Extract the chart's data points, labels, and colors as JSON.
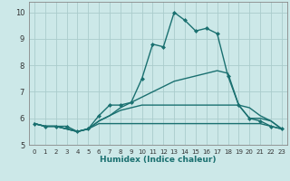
{
  "xlabel": "Humidex (Indice chaleur)",
  "xlim": [
    -0.5,
    23.5
  ],
  "ylim": [
    5.0,
    10.4
  ],
  "yticks": [
    5,
    6,
    7,
    8,
    9,
    10
  ],
  "xticks": [
    0,
    1,
    2,
    3,
    4,
    5,
    6,
    7,
    8,
    9,
    10,
    11,
    12,
    13,
    14,
    15,
    16,
    17,
    18,
    19,
    20,
    21,
    22,
    23
  ],
  "background_color": "#cce8e8",
  "grid_color": "#aacccc",
  "line_color": "#1a7070",
  "lines": [
    {
      "x": [
        0,
        1,
        2,
        3,
        4,
        5,
        6,
        7,
        8,
        9,
        10,
        11,
        12,
        13,
        14,
        15,
        16,
        17,
        18,
        19,
        20,
        21,
        22,
        23
      ],
      "y": [
        5.8,
        5.7,
        5.7,
        5.7,
        5.5,
        5.6,
        6.1,
        6.5,
        6.5,
        6.6,
        7.5,
        8.8,
        8.7,
        10.0,
        9.7,
        9.3,
        9.4,
        9.2,
        7.6,
        6.5,
        6.0,
        5.9,
        5.7,
        5.6
      ],
      "marker": "D",
      "markersize": 2.0,
      "linewidth": 1.0
    },
    {
      "x": [
        0,
        1,
        2,
        3,
        4,
        5,
        6,
        7,
        8,
        9,
        10,
        11,
        12,
        13,
        14,
        15,
        16,
        17,
        18,
        19,
        20,
        21,
        22,
        23
      ],
      "y": [
        5.8,
        5.7,
        5.7,
        5.6,
        5.5,
        5.6,
        5.9,
        6.1,
        6.4,
        6.6,
        6.8,
        7.0,
        7.2,
        7.4,
        7.5,
        7.6,
        7.7,
        7.8,
        7.7,
        6.5,
        6.0,
        6.0,
        5.9,
        5.6
      ],
      "marker": null,
      "markersize": 0,
      "linewidth": 1.0
    },
    {
      "x": [
        0,
        1,
        2,
        3,
        4,
        5,
        6,
        7,
        8,
        9,
        10,
        11,
        12,
        13,
        14,
        15,
        16,
        17,
        18,
        19,
        20,
        21,
        22,
        23
      ],
      "y": [
        5.8,
        5.7,
        5.7,
        5.6,
        5.5,
        5.6,
        5.9,
        6.1,
        6.3,
        6.4,
        6.5,
        6.5,
        6.5,
        6.5,
        6.5,
        6.5,
        6.5,
        6.5,
        6.5,
        6.5,
        6.4,
        6.1,
        5.9,
        5.6
      ],
      "marker": null,
      "markersize": 0,
      "linewidth": 1.0
    },
    {
      "x": [
        0,
        1,
        2,
        3,
        4,
        5,
        6,
        7,
        8,
        9,
        10,
        11,
        12,
        13,
        14,
        15,
        16,
        17,
        18,
        19,
        20,
        21,
        22,
        23
      ],
      "y": [
        5.8,
        5.7,
        5.7,
        5.6,
        5.5,
        5.6,
        5.8,
        5.8,
        5.8,
        5.8,
        5.8,
        5.8,
        5.8,
        5.8,
        5.8,
        5.8,
        5.8,
        5.8,
        5.8,
        5.8,
        5.8,
        5.8,
        5.7,
        5.6
      ],
      "marker": null,
      "markersize": 0,
      "linewidth": 1.0
    }
  ]
}
